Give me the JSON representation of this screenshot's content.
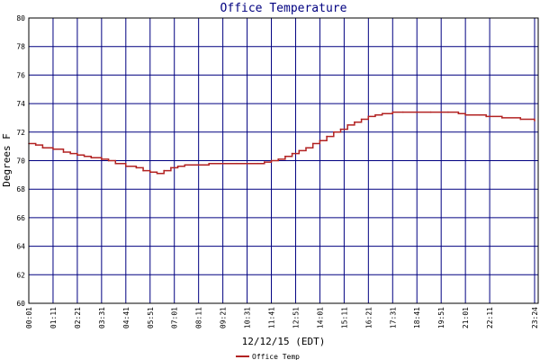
{
  "chart_data": {
    "type": "line",
    "title": "Office Temperature",
    "xlabel": "12/12/15 (EDT)",
    "ylabel": "Degrees F",
    "ylim": [
      60,
      80
    ],
    "y_ticks": [
      60,
      62,
      64,
      66,
      68,
      70,
      72,
      74,
      76,
      78,
      80
    ],
    "x_ticks": [
      "00:01",
      "01:11",
      "02:21",
      "03:31",
      "04:41",
      "05:51",
      "07:01",
      "08:11",
      "09:21",
      "10:31",
      "11:41",
      "12:51",
      "14:01",
      "15:11",
      "16:21",
      "17:31",
      "18:41",
      "19:51",
      "21:01",
      "22:11",
      "23:24"
    ],
    "grid": true,
    "legend_position": "bottom",
    "colors": {
      "frame": "#000000",
      "grid": "#000080",
      "series": "#b22222",
      "title": "#000080"
    },
    "series": [
      {
        "name": "Office Temp",
        "x": [
          "00:01",
          "00:21",
          "00:41",
          "01:11",
          "01:41",
          "02:01",
          "02:21",
          "02:41",
          "03:01",
          "03:31",
          "03:51",
          "04:11",
          "04:41",
          "05:11",
          "05:31",
          "05:51",
          "06:11",
          "06:31",
          "06:51",
          "07:11",
          "07:31",
          "07:51",
          "08:11",
          "08:41",
          "09:21",
          "10:01",
          "10:31",
          "11:01",
          "11:21",
          "11:41",
          "12:01",
          "12:21",
          "12:41",
          "13:01",
          "13:21",
          "13:41",
          "14:01",
          "14:21",
          "14:41",
          "15:01",
          "15:21",
          "15:41",
          "16:01",
          "16:21",
          "16:41",
          "17:01",
          "17:31",
          "18:01",
          "18:41",
          "19:21",
          "19:51",
          "20:11",
          "20:41",
          "21:01",
          "21:41",
          "22:01",
          "22:31",
          "23:01",
          "23:24"
        ],
        "values": [
          71.2,
          71.1,
          70.9,
          70.8,
          70.6,
          70.5,
          70.4,
          70.3,
          70.2,
          70.1,
          70.0,
          69.8,
          69.6,
          69.5,
          69.3,
          69.2,
          69.1,
          69.3,
          69.5,
          69.6,
          69.7,
          69.7,
          69.7,
          69.8,
          69.8,
          69.8,
          69.8,
          69.8,
          69.9,
          70.0,
          70.1,
          70.3,
          70.5,
          70.7,
          70.9,
          71.2,
          71.4,
          71.7,
          72.0,
          72.2,
          72.5,
          72.7,
          72.9,
          73.1,
          73.2,
          73.3,
          73.4,
          73.4,
          73.4,
          73.4,
          73.4,
          73.4,
          73.3,
          73.2,
          73.2,
          73.1,
          73.0,
          72.9,
          72.8
        ]
      }
    ]
  }
}
